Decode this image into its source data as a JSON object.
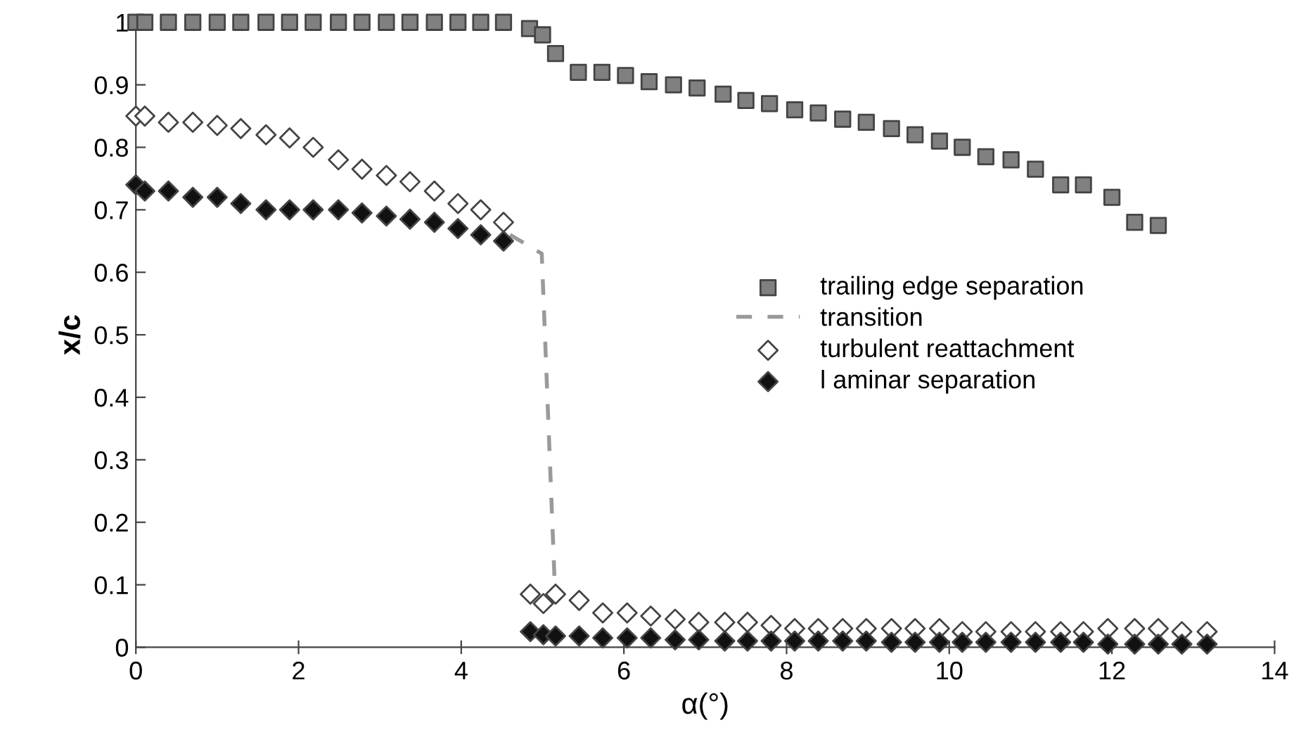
{
  "chart_data": {
    "type": "scatter",
    "xlabel": "α(°)",
    "ylabel": "x/c",
    "xlim": [
      0,
      14
    ],
    "xticks": [
      0,
      2,
      4,
      6,
      8,
      10,
      12,
      14
    ],
    "ylim": [
      0,
      1
    ],
    "yticks": [
      0,
      0.1,
      0.2,
      0.3,
      0.4,
      0.5,
      0.6,
      0.7,
      0.8,
      0.9,
      1
    ],
    "grid": false,
    "legend": "right",
    "series": [
      {
        "name": "trailing edge separation",
        "marker": "square",
        "color": "#808080",
        "x": [
          0,
          0.11,
          0.4,
          0.7,
          1.0,
          1.29,
          1.6,
          1.89,
          2.18,
          2.49,
          2.78,
          3.08,
          3.37,
          3.67,
          3.96,
          4.24,
          4.52,
          4.84,
          5.0,
          5.16,
          5.44,
          5.73,
          6.02,
          6.31,
          6.61,
          6.9,
          7.22,
          7.5,
          7.79,
          8.1,
          8.39,
          8.69,
          8.98,
          9.29,
          9.58,
          9.88,
          10.16,
          10.45,
          10.76,
          11.06,
          11.37,
          11.65,
          12.0,
          12.28,
          12.57
        ],
        "values": [
          1,
          1,
          1,
          1,
          1,
          1,
          1,
          1,
          1,
          1,
          1,
          1,
          1,
          1,
          1,
          1,
          1,
          0.99,
          0.98,
          0.95,
          0.92,
          0.92,
          0.915,
          0.905,
          0.9,
          0.895,
          0.885,
          0.875,
          0.87,
          0.86,
          0.855,
          0.845,
          0.84,
          0.83,
          0.82,
          0.81,
          0.8,
          0.785,
          0.78,
          0.765,
          0.74,
          0.74,
          0.72,
          0.68,
          0.675
        ]
      },
      {
        "name": "transition",
        "type": "line",
        "line_style": "dashed",
        "color": "#9a9a9a",
        "x": [
          4.6,
          4.99,
          5.15
        ],
        "values": [
          0.66,
          0.63,
          0.1
        ]
      },
      {
        "name": "turbulent reattachment",
        "marker": "diamond",
        "color": "#ffffff",
        "x": [
          0,
          0.11,
          0.4,
          0.7,
          1.0,
          1.29,
          1.6,
          1.89,
          2.18,
          2.49,
          2.78,
          3.08,
          3.37,
          3.67,
          3.96,
          4.24,
          4.52,
          4.85,
          5.01,
          5.16,
          5.45,
          5.74,
          6.04,
          6.33,
          6.63,
          6.92,
          7.24,
          7.52,
          7.81,
          8.1,
          8.39,
          8.69,
          8.98,
          9.29,
          9.58,
          9.88,
          10.16,
          10.45,
          10.76,
          11.06,
          11.37,
          11.65,
          11.95,
          12.28,
          12.57,
          12.86,
          13.17
        ],
        "values": [
          0.85,
          0.85,
          0.84,
          0.84,
          0.835,
          0.83,
          0.82,
          0.815,
          0.8,
          0.78,
          0.765,
          0.755,
          0.745,
          0.73,
          0.71,
          0.7,
          0.68,
          0.085,
          0.07,
          0.085,
          0.075,
          0.055,
          0.055,
          0.05,
          0.045,
          0.04,
          0.04,
          0.04,
          0.035,
          0.03,
          0.03,
          0.03,
          0.03,
          0.03,
          0.03,
          0.03,
          0.025,
          0.025,
          0.025,
          0.025,
          0.025,
          0.025,
          0.03,
          0.03,
          0.03,
          0.025,
          0.025
        ]
      },
      {
        "name": "l aminar separation",
        "marker": "diamond",
        "color": "#111111",
        "x": [
          0,
          0.11,
          0.4,
          0.7,
          1.0,
          1.29,
          1.6,
          1.89,
          2.18,
          2.49,
          2.78,
          3.08,
          3.37,
          3.67,
          3.96,
          4.24,
          4.52,
          4.85,
          5.01,
          5.16,
          5.45,
          5.74,
          6.04,
          6.33,
          6.63,
          6.92,
          7.24,
          7.52,
          7.81,
          8.1,
          8.39,
          8.69,
          8.98,
          9.29,
          9.58,
          9.88,
          10.16,
          10.45,
          10.76,
          11.06,
          11.37,
          11.65,
          11.95,
          12.28,
          12.57,
          12.86,
          13.17
        ],
        "values": [
          0.74,
          0.73,
          0.73,
          0.72,
          0.72,
          0.71,
          0.7,
          0.7,
          0.7,
          0.7,
          0.695,
          0.69,
          0.685,
          0.68,
          0.67,
          0.66,
          0.65,
          0.025,
          0.02,
          0.018,
          0.018,
          0.015,
          0.015,
          0.015,
          0.012,
          0.012,
          0.01,
          0.01,
          0.01,
          0.01,
          0.01,
          0.01,
          0.01,
          0.008,
          0.008,
          0.008,
          0.008,
          0.008,
          0.008,
          0.008,
          0.008,
          0.008,
          0.005,
          0.005,
          0.005,
          0.005,
          0.005
        ]
      }
    ]
  }
}
